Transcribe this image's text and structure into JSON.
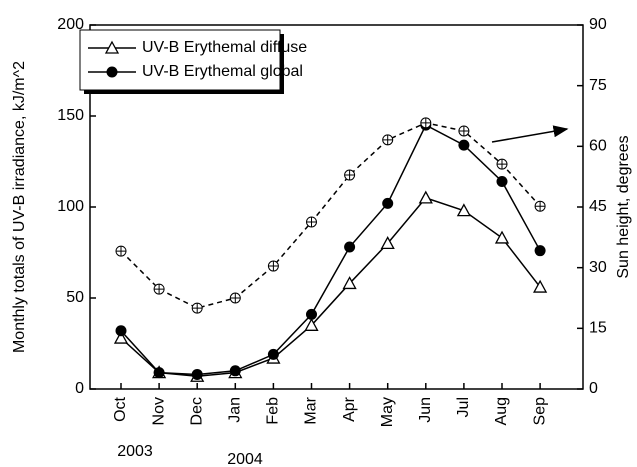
{
  "chart_data": {
    "type": "line",
    "categories": [
      "Oct",
      "Nov",
      "Dec",
      "Jan",
      "Feb",
      "Mar",
      "Apr",
      "May",
      "Jun",
      "Jul",
      "Aug",
      "Sep"
    ],
    "ylabel": "Monthly totals of UV-B irradiance, kJ/m^2",
    "y2label": "Sun height, degrees",
    "annotations": [
      "2003",
      "2004"
    ],
    "series": [
      {
        "name": "UV-B Erythemal diffuse",
        "color": "#000000",
        "marker": "triangle",
        "dash": false,
        "values": [
          28,
          9,
          7,
          9,
          17,
          35,
          58,
          80,
          105,
          98,
          83,
          56
        ]
      },
      {
        "name": "UV-B Erythemal global",
        "color": "#000000",
        "marker": "circle",
        "dash": false,
        "values": [
          32,
          9,
          8,
          10,
          19,
          41,
          78,
          102,
          145,
          134,
          114,
          76
        ]
      },
      {
        "color": "#000000",
        "marker": "circle-plus",
        "dash": true,
        "axis": "y2",
        "values": [
          34.1,
          24.7,
          20,
          22.5,
          30.4,
          41.3,
          52.9,
          61.6,
          65.8,
          63.8,
          55.6,
          45.2
        ]
      }
    ],
    "ylim": [
      0,
      200
    ],
    "yticks": [
      0,
      50,
      100,
      150,
      200
    ],
    "y2lim": [
      0,
      90
    ],
    "y2ticks": [
      0,
      15,
      30,
      45,
      60,
      75,
      90
    ],
    "legend": "upper left",
    "grid": false
  }
}
